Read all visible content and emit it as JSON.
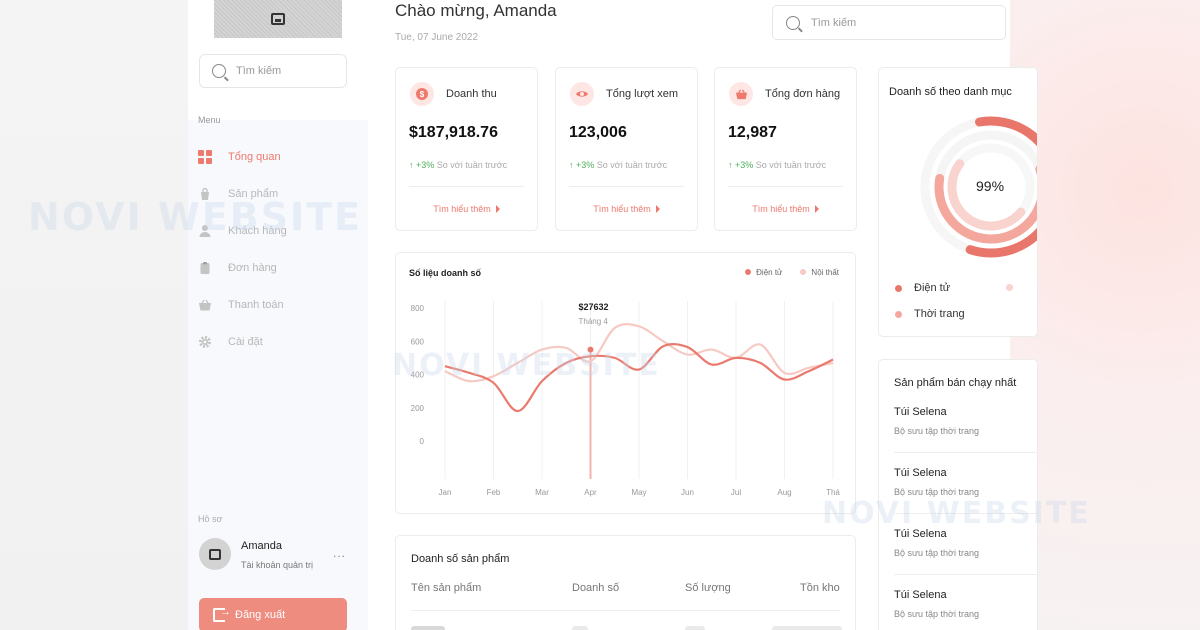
{
  "header": {
    "greeting": "Chào mừng, Amanda",
    "date": "Tue, 07 June 2022",
    "search_placeholder": "Tìm kiếm"
  },
  "sidebar": {
    "search_placeholder": "Tìm kiếm",
    "menu_label": "Menu",
    "items": [
      {
        "label": "Tổng quan",
        "icon": "grid-icon",
        "active": true
      },
      {
        "label": "Sản phẩm",
        "icon": "bag-icon",
        "active": false
      },
      {
        "label": "Khách hàng",
        "icon": "user-icon",
        "active": false
      },
      {
        "label": "Đơn hàng",
        "icon": "clipboard-icon",
        "active": false
      },
      {
        "label": "Thanh toán",
        "icon": "basket-icon",
        "active": false
      },
      {
        "label": "Cài đặt",
        "icon": "gear-icon",
        "active": false
      }
    ],
    "profile_label": "Hồ sơ",
    "profile": {
      "name": "Amanda",
      "role": "Tài khoản quản trị",
      "more": "..."
    },
    "logout_label": "Đăng xuất"
  },
  "stats": [
    {
      "title": "Doanh thu",
      "value": "$187,918.76",
      "delta": "+3%",
      "delta_text": "So với tuần trước",
      "link": "Tìm hiểu thêm",
      "icon": "dollar-icon"
    },
    {
      "title": "Tổng lượt xem",
      "value": "123,006",
      "delta": "+3%",
      "delta_text": "So với tuần trước",
      "link": "Tìm hiểu thêm",
      "icon": "eye-icon"
    },
    {
      "title": "Tổng đơn hàng",
      "value": "12,987",
      "delta": "+3%",
      "delta_text": "So với tuần trước",
      "link": "Tìm hiểu thêm",
      "icon": "basket-icon"
    }
  ],
  "sales_chart": {
    "title": "Số liệu doanh số",
    "tooltip_value": "$27632",
    "tooltip_month": "Tháng 4"
  },
  "chart_data": {
    "type": "line",
    "title": "Số liệu doanh số",
    "categories": [
      "Jan",
      "Feb",
      "Mar",
      "Apr",
      "May",
      "Jun",
      "Jul",
      "Aug",
      "Thá"
    ],
    "yticks": [
      800,
      600,
      400,
      200,
      0
    ],
    "ylim": [
      0,
      800
    ],
    "legend_position": "top-right",
    "grid": true,
    "series": [
      {
        "name": "Điện tử",
        "color": "#ea7a6e",
        "x": [
          0,
          0.5,
          1,
          1.5,
          2,
          2.5,
          3,
          3.5,
          4,
          4.5,
          5,
          5.5,
          6,
          6.5,
          7,
          7.5,
          8
        ],
        "values": [
          450,
          410,
          350,
          180,
          360,
          470,
          510,
          500,
          430,
          570,
          565,
          460,
          500,
          470,
          370,
          420,
          490
        ]
      },
      {
        "name": "Nội thất",
        "color": "#f6c9c3",
        "x": [
          0,
          0.5,
          1,
          1.5,
          2,
          2.5,
          3,
          3.5,
          4,
          4.5,
          5,
          5.5,
          6,
          6.5,
          7,
          7.5,
          8
        ],
        "values": [
          420,
          360,
          390,
          470,
          550,
          560,
          480,
          680,
          690,
          600,
          520,
          550,
          500,
          580,
          410,
          440,
          470
        ]
      }
    ],
    "highlight": {
      "x": 3,
      "value": 550
    }
  },
  "donut": {
    "title": "Doanh số theo danh mục",
    "percent": "99%",
    "legend": [
      {
        "label": "Điện tử",
        "color": "#e9766a"
      },
      {
        "label": "Thời trang",
        "color": "#f3a79d"
      }
    ]
  },
  "product_table": {
    "title": "Doanh số sản phẩm",
    "columns": [
      "Tên sản phẩm",
      "Doanh số",
      "Số lượng",
      "Tồn kho"
    ]
  },
  "best_sellers": {
    "title": "Sản phẩm bán chạy nhất",
    "items": [
      {
        "name": "Túi Selena",
        "sub": "Bộ sưu tập thời trang"
      },
      {
        "name": "Túi Selena",
        "sub": "Bộ sưu tập thời trang"
      },
      {
        "name": "Túi Selena",
        "sub": "Bộ sưu tập thời trang"
      },
      {
        "name": "Túi Selena",
        "sub": "Bộ sưu tập thời trang"
      }
    ]
  },
  "watermark": "NOVI WEBSITE"
}
